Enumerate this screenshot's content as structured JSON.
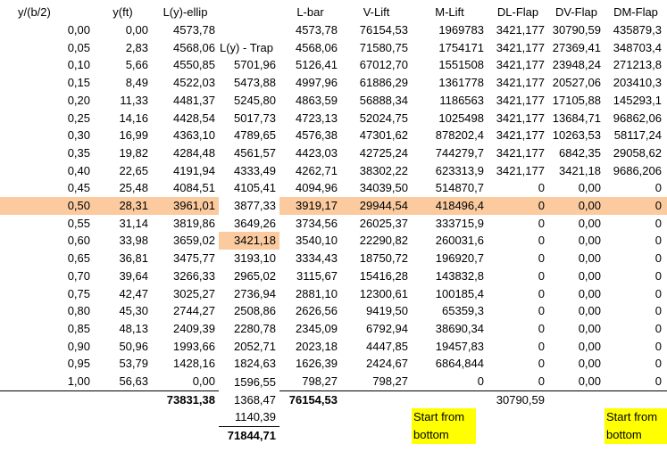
{
  "colors": {
    "highlight_peach": "#FBCB9F",
    "highlight_yellow": "#FFFF00"
  },
  "table": {
    "headers": [
      "y/(b/2)",
      "y(ft)",
      "L(y)-ellip",
      "",
      "L-bar",
      "V-Lift",
      "M-Lift",
      "DL-Flap",
      "DV-Flap",
      "DM-Flap"
    ],
    "trap_column_label": "L(y) - Trap",
    "rows": [
      [
        "0,00",
        "0,00",
        "4573,78",
        "",
        "4573,78",
        "76154,53",
        "1969783",
        "3421,177",
        "30790,59",
        "435879,3"
      ],
      [
        "0,05",
        "2,83",
        "4568,06",
        "L(y) - Trap",
        "4568,06",
        "71580,75",
        "1754171",
        "3421,177",
        "27369,41",
        "348703,4"
      ],
      [
        "0,10",
        "5,66",
        "4550,85",
        "5701,96",
        "5126,41",
        "67012,70",
        "1551508",
        "3421,177",
        "23948,24",
        "271213,8"
      ],
      [
        "0,15",
        "8,49",
        "4522,03",
        "5473,88",
        "4997,96",
        "61886,29",
        "1361778",
        "3421,177",
        "20527,06",
        "203410,3"
      ],
      [
        "0,20",
        "11,33",
        "4481,37",
        "5245,80",
        "4863,59",
        "56888,34",
        "1186563",
        "3421,177",
        "17105,88",
        "145293,1"
      ],
      [
        "0,25",
        "14,16",
        "4428,54",
        "5017,73",
        "4723,13",
        "52024,75",
        "1025498",
        "3421,177",
        "13684,71",
        "96862,06"
      ],
      [
        "0,30",
        "16,99",
        "4363,10",
        "4789,65",
        "4576,38",
        "47301,62",
        "878202,4",
        "3421,177",
        "10263,53",
        "58117,24"
      ],
      [
        "0,35",
        "19,82",
        "4284,48",
        "4561,57",
        "4423,03",
        "42725,24",
        "744279,7",
        "3421,177",
        "6842,35",
        "29058,62"
      ],
      [
        "0,40",
        "22,65",
        "4191,94",
        "4333,49",
        "4262,71",
        "38302,22",
        "623313,9",
        "3421,177",
        "3421,18",
        "9686,206"
      ],
      [
        "0,45",
        "25,48",
        "4084,51",
        "4105,41",
        "4094,96",
        "34039,50",
        "514870,7",
        "0",
        "0,00",
        "0"
      ],
      [
        "0,50",
        "28,31",
        "3961,01",
        "3877,33",
        "3919,17",
        "29944,54",
        "418496,4",
        "0",
        "0,00",
        "0"
      ],
      [
        "0,55",
        "31,14",
        "3819,86",
        "3649,26",
        "3734,56",
        "26025,37",
        "333715,9",
        "0",
        "0,00",
        "0"
      ],
      [
        "0,60",
        "33,98",
        "3659,02",
        "3421,18",
        "3540,10",
        "22290,82",
        "260031,6",
        "0",
        "0,00",
        "0"
      ],
      [
        "0,65",
        "36,81",
        "3475,77",
        "3193,10",
        "3334,43",
        "18750,72",
        "196920,7",
        "0",
        "0,00",
        "0"
      ],
      [
        "0,70",
        "39,64",
        "3266,33",
        "2965,02",
        "3115,67",
        "15416,28",
        "143832,8",
        "0",
        "0,00",
        "0"
      ],
      [
        "0,75",
        "42,47",
        "3025,27",
        "2736,94",
        "2881,10",
        "12300,61",
        "100185,4",
        "0",
        "0,00",
        "0"
      ],
      [
        "0,80",
        "45,30",
        "2744,27",
        "2508,86",
        "2626,56",
        "9419,50",
        "65359,3",
        "0",
        "0,00",
        "0"
      ],
      [
        "0,85",
        "48,13",
        "2409,39",
        "2280,78",
        "2345,09",
        "6792,94",
        "38690,34",
        "0",
        "0,00",
        "0"
      ],
      [
        "0,90",
        "50,96",
        "1993,66",
        "2052,71",
        "2023,18",
        "4447,85",
        "19457,83",
        "0",
        "0,00",
        "0"
      ],
      [
        "0,95",
        "53,79",
        "1428,16",
        "1824,63",
        "1626,39",
        "2424,67",
        "6864,844",
        "0",
        "0,00",
        "0"
      ],
      [
        "1,00",
        "56,63",
        "0,00",
        "1596,55",
        "798,27",
        "798,27",
        "0",
        "0",
        "0,00",
        "0"
      ]
    ],
    "totals": {
      "ellip_total": "73831,38",
      "trap_extra_1": "1368,47",
      "lbar_total": "76154,53",
      "dlflap_total": "30790,59",
      "trap_extra_2": "1140,39",
      "trap_total": "71844,71"
    },
    "notes": {
      "note_mlift": "Start from bottom",
      "note_dmflap": "Start from bottom"
    }
  },
  "highlights": {
    "peach_row_index": 10,
    "peach_row_skip_col": 3,
    "peach_cell_row": 12,
    "peach_cell_col": 3
  }
}
